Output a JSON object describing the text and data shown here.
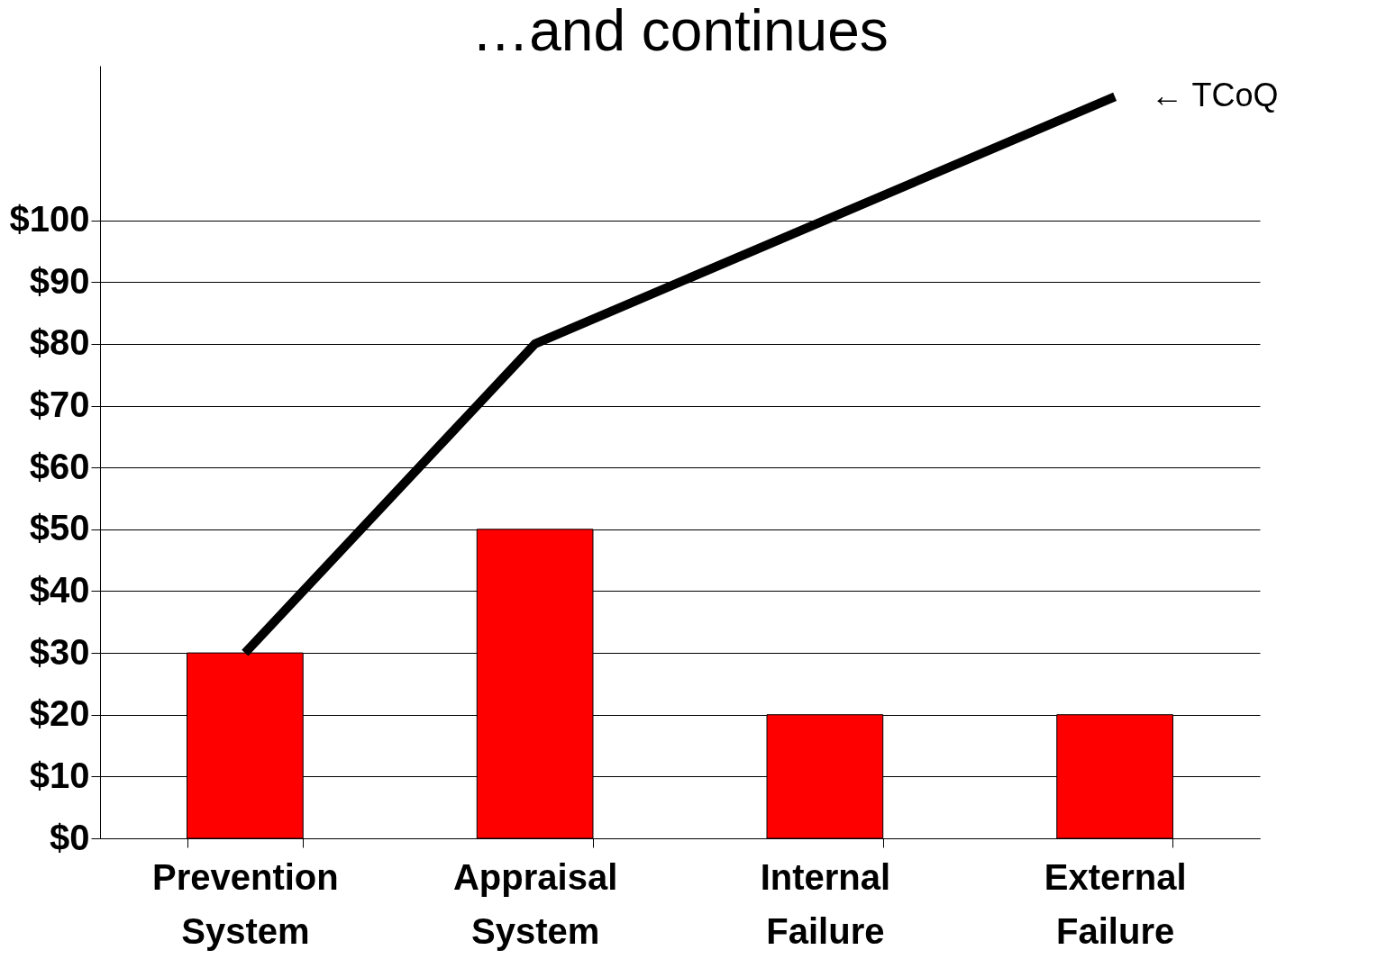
{
  "chart_data": {
    "type": "bar",
    "title": "…and continues",
    "categories": [
      "Prevention System",
      "Appraisal System",
      "Internal Failure",
      "External Failure"
    ],
    "series": [
      {
        "color": "#ff0000",
        "values": [
          30,
          50,
          20,
          20
        ]
      },
      {
        "type": "line",
        "name": "← TCoQ",
        "color": "#000000",
        "values": [
          30,
          80,
          100,
          120
        ]
      }
    ],
    "ylim": [
      0,
      125
    ],
    "yticks": [
      {
        "value": 0,
        "label": "$0"
      },
      {
        "value": 10,
        "label": "$10"
      },
      {
        "value": 20,
        "label": "$20"
      },
      {
        "value": 30,
        "label": "$30"
      },
      {
        "value": 40,
        "label": "$40"
      },
      {
        "value": 50,
        "label": "$50"
      },
      {
        "value": 60,
        "label": "$60"
      },
      {
        "value": 70,
        "label": "$70"
      },
      {
        "value": 80,
        "label": "$80"
      },
      {
        "value": 90,
        "label": "$90"
      },
      {
        "value": 100,
        "label": "$100"
      }
    ],
    "grid": "y",
    "line_style": "solid",
    "marker": "none"
  }
}
